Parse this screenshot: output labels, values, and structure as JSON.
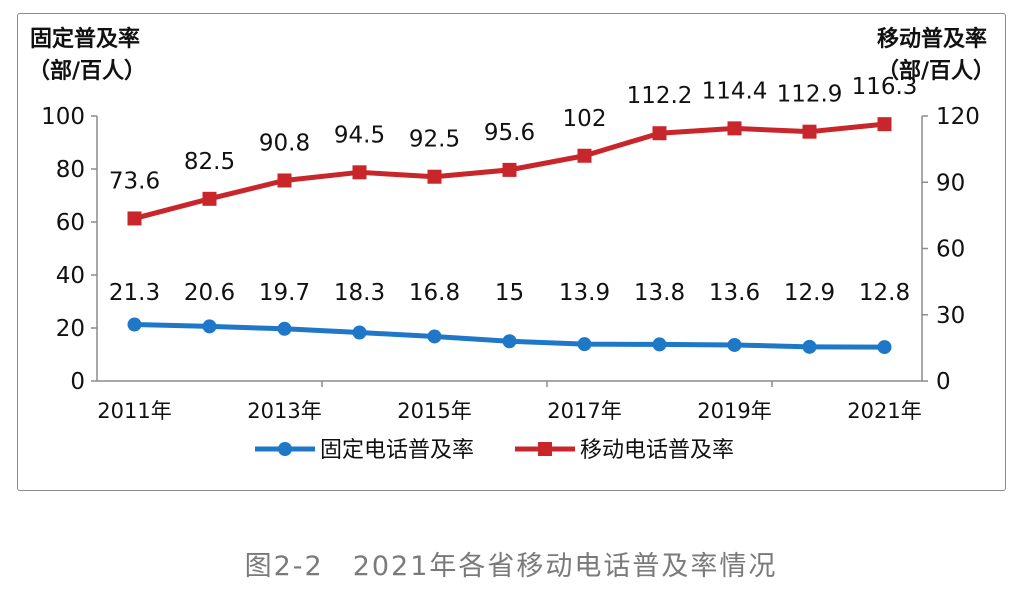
{
  "chart_data": {
    "type": "line",
    "categories": [
      "2011年",
      "2012年",
      "2013年",
      "2014年",
      "2015年",
      "2016年",
      "2017年",
      "2018年",
      "2019年",
      "2020年",
      "2021年"
    ],
    "x_tick_labels_shown": [
      "2011年",
      "2013年",
      "2015年",
      "2017年",
      "2019年",
      "2021年"
    ],
    "left_axis": {
      "label_line1": "固定普及率",
      "label_line2": "（部/百人）",
      "ylim": [
        0,
        100
      ],
      "ticks": [
        "0",
        "20",
        "40",
        "60",
        "80",
        "100"
      ]
    },
    "right_axis": {
      "label_line1": "移动普及率",
      "label_line2": "（部/百人）",
      "ylim": [
        0,
        120
      ],
      "ticks": [
        "0",
        "30",
        "60",
        "90",
        "120"
      ]
    },
    "series": [
      {
        "name": "固定电话普及率",
        "axis": "left",
        "color": "#1f77c8",
        "marker": "circle",
        "values": [
          21.3,
          20.6,
          19.7,
          18.3,
          16.8,
          15,
          13.9,
          13.8,
          13.6,
          12.9,
          12.8
        ],
        "labels": [
          "21.3",
          "20.6",
          "19.7",
          "18.3",
          "16.8",
          "15",
          "13.9",
          "13.8",
          "13.6",
          "12.9",
          "12.8"
        ]
      },
      {
        "name": "移动电话普及率",
        "axis": "right",
        "color": "#c8262a",
        "marker": "square",
        "values": [
          73.6,
          82.5,
          90.8,
          94.5,
          92.5,
          95.6,
          102,
          112.2,
          114.4,
          112.9,
          116.3
        ],
        "labels": [
          "73.6",
          "82.5",
          "90.8",
          "94.5",
          "92.5",
          "95.6",
          "102",
          "112.2",
          "114.4",
          "112.9",
          "116.3"
        ]
      }
    ],
    "legend": "bottom",
    "grid": false
  },
  "caption": "图2-2　2021年各省移动电话普及率情况"
}
